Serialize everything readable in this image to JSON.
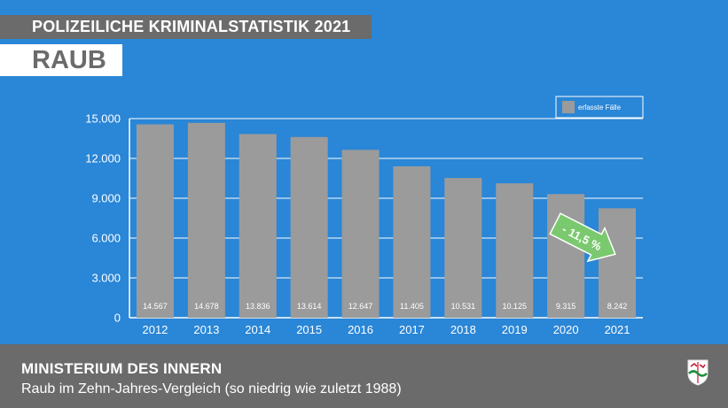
{
  "header": {
    "kicker": "POLIZEILICHE KRIMINALSTATISTIK 2021",
    "title": "RAUB"
  },
  "chart_data": {
    "type": "bar",
    "categories": [
      "2012",
      "2013",
      "2014",
      "2015",
      "2016",
      "2017",
      "2018",
      "2019",
      "2020",
      "2021"
    ],
    "values": [
      14567,
      14678,
      13836,
      13614,
      12647,
      11405,
      10531,
      10125,
      9315,
      8242
    ],
    "value_labels": [
      "14.567",
      "14.678",
      "13.836",
      "13.614",
      "12.647",
      "11.405",
      "10.531",
      "10.125",
      "9.315",
      "8.242"
    ],
    "y_ticks": [
      0,
      3000,
      6000,
      9000,
      12000,
      15000
    ],
    "y_tick_labels": [
      "0",
      "3.000",
      "6.000",
      "9.000",
      "12.000",
      "15.000"
    ],
    "ylim": [
      0,
      15000
    ],
    "grid": true,
    "legend": {
      "label": "erfasste Fälle",
      "position": "top-right"
    },
    "annotation": {
      "text": "- 11,5 %"
    },
    "colors": {
      "bar": "#9b9b9b",
      "background": "#2a86d6",
      "grid": "#ffffff",
      "arrow": "#7bc96f"
    }
  },
  "footer": {
    "title": "MINISTERIUM DES INNERN",
    "subtitle": "Raub im Zehn-Jahres-Vergleich (so niedrig wie zuletzt 1988)",
    "crest_icon": "nrw-crest-icon"
  }
}
